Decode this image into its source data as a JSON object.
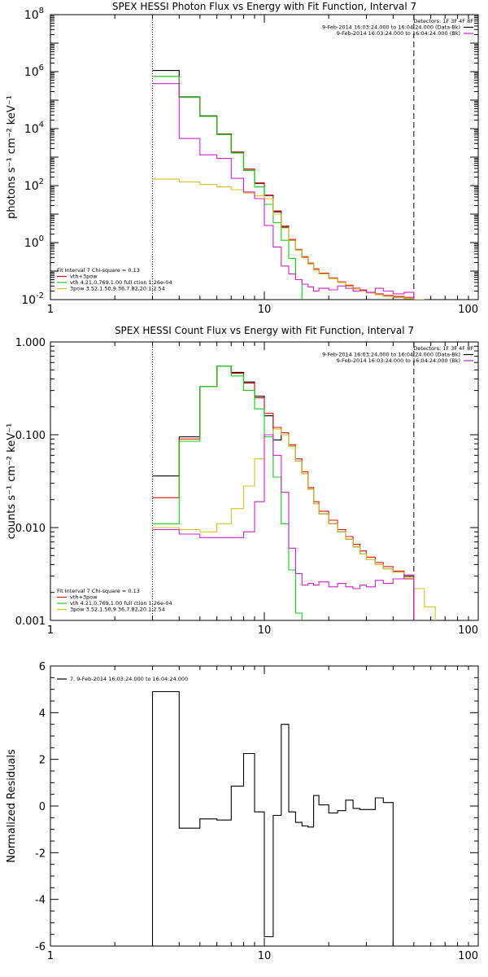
{
  "colors": {
    "black": "#000000",
    "red": "#e01010",
    "green": "#10d010",
    "magenta": "#d020d0",
    "yellow": "#d8c020"
  },
  "chart_data": [
    {
      "id": "photon",
      "type": "line",
      "title": "SPEX HESSI Photon Flux vs Energy with Fit Function, Interval 7",
      "ylabel": "photons s⁻¹ cm⁻² keV⁻¹",
      "xlabel": "",
      "xscale": "log",
      "yscale": "log",
      "xlim": [
        1,
        100
      ],
      "ylim": [
        0.01,
        100000000
      ],
      "xticks": [
        {
          "v": 1,
          "label": "1"
        },
        {
          "v": 10,
          "label": "10"
        },
        {
          "v": 100,
          "label": "100"
        }
      ],
      "yticks": [
        {
          "v": 0.01,
          "base": "10",
          "exp": "-2"
        },
        {
          "v": 1,
          "base": "10",
          "exp": "0"
        },
        {
          "v": 100,
          "base": "10",
          "exp": "2"
        },
        {
          "v": 10000,
          "base": "10",
          "exp": "4"
        },
        {
          "v": 1000000,
          "base": "10",
          "exp": "6"
        },
        {
          "v": 100000000,
          "base": "10",
          "exp": "8"
        }
      ],
      "vlines": [
        {
          "x": 3,
          "style": "dotted"
        },
        {
          "x": 50,
          "style": "dashed"
        }
      ],
      "legend_tr": {
        "lines": [
          "Detectors: 1F 3F 4F 8F",
          "9-Feb-2014 16:03:24.000 to 16:04:24.000 (Data-Bk)",
          "9-Feb-2014 16:03:24.000 to 16:04:24.000 (Bk)"
        ],
        "swatches": [
          "",
          "#000000",
          "#d020d0"
        ]
      },
      "legend_bl": {
        "lines": [
          "Fit Interval  7   Chi-square = 0.13",
          "vth+3pow",
          "vth 4.21,0.769,1.00  full ction 1.26e-04",
          "3pow 3.52,1.50,9.36,7.82,20.1,2.54"
        ],
        "swatches": [
          "",
          "#e01010",
          "#10d010",
          "#d8c020"
        ]
      },
      "edges": [
        3,
        4,
        5,
        6,
        7,
        8,
        9,
        10,
        11,
        12,
        13,
        14,
        15,
        16,
        17,
        18,
        20,
        22,
        24,
        26,
        28,
        30,
        33,
        36,
        40,
        45,
        50,
        56
      ],
      "series": [
        {
          "name": "data",
          "color": "#000000",
          "values": [
            1100000,
            130000,
            28000,
            6500,
            1500,
            380,
            120,
            45,
            12,
            3.5,
            1.2,
            0.55,
            0.3,
            0.18,
            0.11,
            0.08,
            0.055,
            0.04,
            0.03,
            0.024,
            0.02,
            0.017,
            0.015,
            0.013,
            0.012,
            0.011,
            null
          ]
        },
        {
          "name": "vth+3pow",
          "color": "#e01010",
          "values": [
            680000,
            125000,
            27000,
            6400,
            1500,
            380,
            125,
            47,
            13,
            3.8,
            1.3,
            0.58,
            0.32,
            0.19,
            0.12,
            0.085,
            0.058,
            0.042,
            0.032,
            0.025,
            0.021,
            0.018,
            0.016,
            0.014,
            0.013,
            0.012,
            null
          ]
        },
        {
          "name": "vth",
          "color": "#10d010",
          "values": [
            680000,
            125000,
            27000,
            6200,
            1400,
            340,
            90,
            22,
            5,
            1.2,
            0.28,
            0.05,
            null,
            null,
            null,
            null,
            null,
            null,
            null,
            null,
            null,
            null,
            null,
            null,
            null,
            null,
            null
          ]
        },
        {
          "name": "3pow",
          "color": "#d8c020",
          "values": [
            170,
            135,
            110,
            90,
            72,
            55,
            44,
            35,
            10,
            3.3,
            1.2,
            0.55,
            0.3,
            0.18,
            0.11,
            0.08,
            0.055,
            0.04,
            0.03,
            0.024,
            0.02,
            0.017,
            0.015,
            0.013,
            0.012,
            0.011,
            0.009
          ]
        },
        {
          "name": "Bk",
          "color": "#d020d0",
          "values": [
            380000,
            4500,
            1200,
            900,
            180,
            60,
            35,
            4,
            0.7,
            0.15,
            0.08,
            0.05,
            0.035,
            0.028,
            0.02,
            0.025,
            0.022,
            0.03,
            0.025,
            0.02,
            0.022,
            0.018,
            0.025,
            0.02,
            0.016,
            0.018,
            null
          ]
        }
      ]
    },
    {
      "id": "count",
      "type": "line",
      "title": "SPEX HESSI Count Flux vs Energy with Fit Function, Interval 7",
      "ylabel": "counts s⁻¹ cm⁻² keV⁻¹",
      "xlabel": "",
      "xscale": "log",
      "yscale": "log",
      "xlim": [
        1,
        100
      ],
      "ylim": [
        0.001,
        1
      ],
      "xticks": [
        {
          "v": 1,
          "label": "1"
        },
        {
          "v": 10,
          "label": "10"
        },
        {
          "v": 100,
          "label": "100"
        }
      ],
      "yticks": [
        {
          "v": 0.001,
          "label": "0.001"
        },
        {
          "v": 0.01,
          "label": "0.010"
        },
        {
          "v": 0.1,
          "label": "0.100"
        },
        {
          "v": 1,
          "label": "1.000"
        }
      ],
      "vlines": [
        {
          "x": 3,
          "style": "dotted"
        },
        {
          "x": 50,
          "style": "dashed"
        }
      ],
      "legend_tr": {
        "lines": [
          "Detectors: 1F 3F 4F 8F",
          "9-Feb-2014 16:03:24.000 to 16:04:24.000 (Data-Bk)",
          "9-Feb-2014 16:03:24.000 to 16:04:24.000 (Bk)"
        ],
        "swatches": [
          "",
          "#000000",
          "#d020d0"
        ]
      },
      "legend_bl": {
        "lines": [
          "Fit Interval  7   Chi-square = 0.13",
          "vth+3pow",
          "vth 4.21,0.769,1.00  full ction 1.26e-04",
          "3pow 3.52,1.50,9.36,7.82,20.1,2.54"
        ],
        "swatches": [
          "",
          "#e01010",
          "#10d010",
          "#d8c020"
        ]
      },
      "edges": [
        3,
        4,
        5,
        6,
        7,
        8,
        9,
        10,
        11,
        12,
        13,
        14,
        15,
        16,
        17,
        18,
        20,
        22,
        24,
        26,
        28,
        30,
        33,
        36,
        40,
        45,
        50,
        56,
        63
      ],
      "series": [
        {
          "name": "data",
          "color": "#000000",
          "values": [
            0.036,
            0.095,
            0.33,
            0.55,
            0.47,
            0.37,
            0.26,
            0.16,
            0.088,
            0.1,
            0.075,
            0.052,
            0.038,
            0.026,
            0.018,
            0.014,
            0.011,
            0.009,
            0.0075,
            0.0062,
            0.0052,
            0.0045,
            0.004,
            0.0036,
            0.0033,
            0.003,
            null,
            null
          ]
        },
        {
          "name": "vth+3pow",
          "color": "#e01010",
          "values": [
            0.021,
            0.09,
            0.33,
            0.55,
            0.46,
            0.36,
            0.25,
            0.17,
            0.12,
            0.105,
            0.078,
            0.055,
            0.04,
            0.027,
            0.019,
            0.015,
            0.012,
            0.0095,
            0.008,
            0.0066,
            0.0056,
            0.0048,
            0.0042,
            0.0038,
            0.0034,
            0.0028,
            null,
            null
          ]
        },
        {
          "name": "vth",
          "color": "#10d010",
          "values": [
            0.011,
            0.085,
            0.33,
            0.55,
            0.43,
            0.3,
            0.19,
            0.095,
            0.035,
            0.011,
            0.0035,
            0.0012,
            null,
            null,
            null,
            null,
            null,
            null,
            null,
            null,
            null,
            null,
            null,
            null,
            null,
            null,
            null,
            null
          ]
        },
        {
          "name": "3pow",
          "color": "#d8c020",
          "values": [
            0.01,
            0.0095,
            0.009,
            0.011,
            0.016,
            0.028,
            0.055,
            0.1,
            0.115,
            0.1,
            0.075,
            0.052,
            0.038,
            0.026,
            0.018,
            0.014,
            0.011,
            0.009,
            0.0075,
            0.0062,
            0.0052,
            0.0045,
            0.004,
            0.0036,
            0.0033,
            0.0029,
            0.0022,
            0.0014
          ]
        },
        {
          "name": "Bk",
          "color": "#d020d0",
          "values": [
            0.0095,
            0.0085,
            0.0078,
            0.0078,
            0.0078,
            0.009,
            0.019,
            0.1,
            0.06,
            0.024,
            0.006,
            0.0032,
            0.0024,
            0.0025,
            0.0024,
            0.0026,
            0.0023,
            0.0025,
            0.0023,
            0.0022,
            0.0024,
            0.0023,
            0.0027,
            0.0025,
            0.0028,
            0.0031,
            null,
            null
          ]
        }
      ]
    },
    {
      "id": "resid",
      "type": "line",
      "title": "",
      "ylabel": "Normalized Residuals",
      "xlabel": "",
      "xscale": "log",
      "yscale": "linear",
      "xlim": [
        1,
        100
      ],
      "ylim": [
        -6,
        6
      ],
      "xticks": [
        {
          "v": 1,
          "label": "1"
        },
        {
          "v": 10,
          "label": "10"
        },
        {
          "v": 100,
          "label": "100"
        }
      ],
      "yticks": [
        {
          "v": -6,
          "label": "-6"
        },
        {
          "v": -4,
          "label": "-4"
        },
        {
          "v": -2,
          "label": "-2"
        },
        {
          "v": 0,
          "label": "0"
        },
        {
          "v": 2,
          "label": "2"
        },
        {
          "v": 4,
          "label": "4"
        },
        {
          "v": 6,
          "label": "6"
        }
      ],
      "vlines": [],
      "legend_tl": {
        "lines": [
          "7.  9-Feb-2014 16:03:24.000 to 16:04:24.000"
        ],
        "swatches": [
          "#000000"
        ]
      },
      "edges": [
        3,
        4,
        5,
        6,
        7,
        8,
        9,
        10,
        11,
        12,
        13,
        14,
        15,
        16,
        17,
        18,
        20,
        22,
        24,
        26,
        28,
        30,
        33,
        36,
        40,
        45,
        50
      ],
      "series": [
        {
          "name": "residuals",
          "color": "#000000",
          "values": [
            4.9,
            -0.95,
            -0.55,
            -0.6,
            0.85,
            2.25,
            -0.25,
            -5.6,
            -0.4,
            3.5,
            -0.25,
            -0.7,
            -0.85,
            -0.9,
            0.45,
            0.05,
            -0.3,
            -0.2,
            0.25,
            -0.1,
            -0.15,
            -0.15,
            0.35,
            0.15,
            null,
            null
          ]
        }
      ],
      "closed_edges": true
    }
  ]
}
